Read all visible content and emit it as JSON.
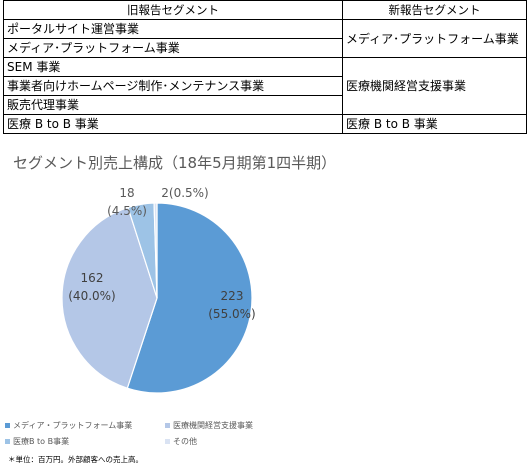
{
  "table": {
    "header_old": "旧報告セグメント",
    "header_new": "新報告セグメント",
    "rows": [
      {
        "old": "ポータルサイト運営事業"
      },
      {
        "old": "メディア･プラットフォーム事業"
      },
      {
        "old": "SEM 事業"
      },
      {
        "old": "事業者向けホームページ制作･メンテナンス事業"
      },
      {
        "old": "販売代理事業"
      },
      {
        "old": "医療 B to B 事業"
      }
    ],
    "new": [
      {
        "label": "メディア･プラットフォーム事業"
      },
      {
        "label": "医療機関経営支援事業"
      },
      {
        "label": "医療 B to B 事業"
      }
    ]
  },
  "chart_data": {
    "type": "pie",
    "title": "セグメント別売上構成（18年5月期第1四半期）",
    "slices": [
      {
        "name": "メディア・プラットフォーム事業",
        "value": 223,
        "percent": "55.0%",
        "label_value": "223",
        "label_pct": "(55.0%)",
        "color": "#5b9bd5"
      },
      {
        "name": "医療機関経営支援事業",
        "value": 162,
        "percent": "40.0%",
        "label_value": "162",
        "label_pct": "(40.0%)",
        "color": "#b4c7e7"
      },
      {
        "name": "医療B to B事業",
        "value": 18,
        "percent": "4.5%",
        "label_value": "18",
        "label_pct": "(4.5%)",
        "color": "#9dc3e6"
      },
      {
        "name": "その他",
        "value": 2,
        "percent": "0.5%",
        "label_value": "2(0.5%)",
        "label_pct": "",
        "color": "#dae3f3"
      }
    ],
    "legend_position": "bottom"
  },
  "note": "＊単位：百万円。外部顧客への売上高。"
}
